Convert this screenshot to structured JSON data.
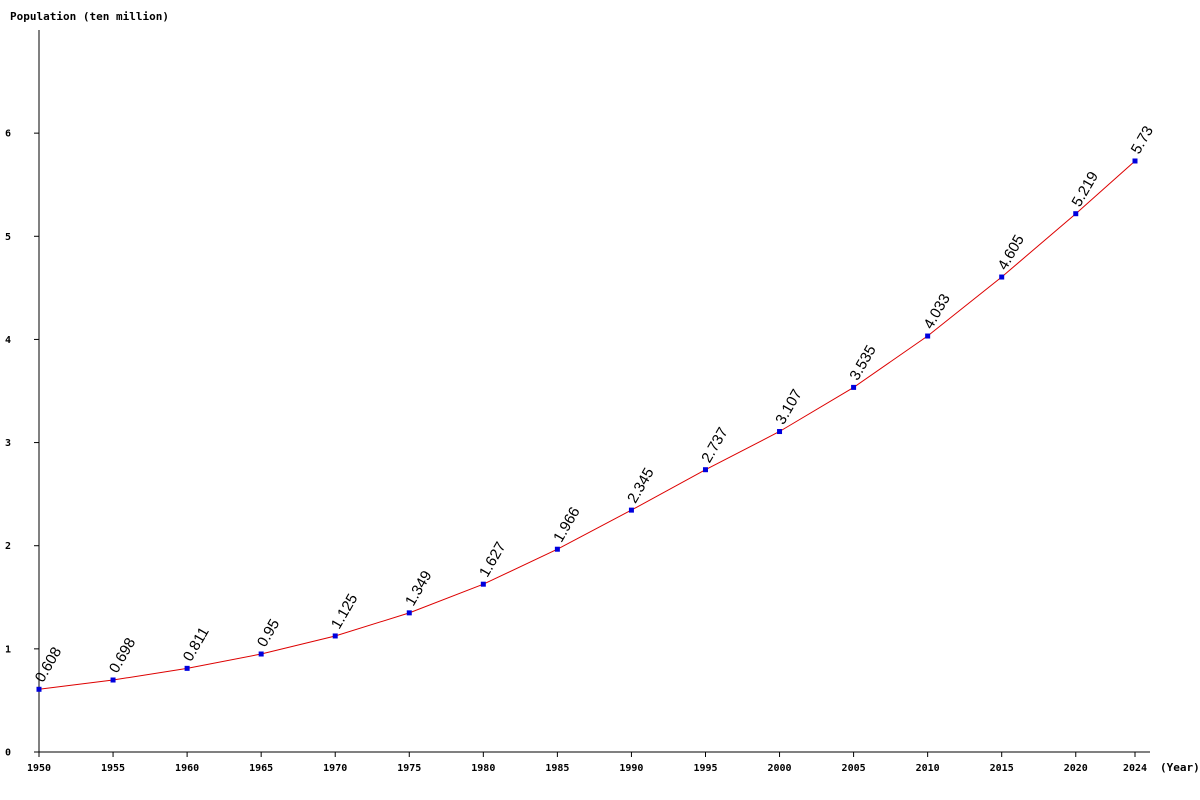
{
  "chart_data": {
    "type": "line",
    "ylabel": "Population (ten million)",
    "xlabel": "(Year)",
    "x": [
      1950,
      1955,
      1960,
      1965,
      1970,
      1975,
      1980,
      1985,
      1990,
      1995,
      2000,
      2005,
      2010,
      2015,
      2020,
      2024
    ],
    "x_tick_labels": [
      "1950",
      "1955",
      "1960",
      "1965",
      "1970",
      "1975",
      "1980",
      "1985",
      "1990",
      "1995",
      "2000",
      "2005",
      "2010",
      "2015",
      "2020",
      "2024"
    ],
    "values": [
      0.608,
      0.698,
      0.811,
      0.95,
      1.125,
      1.349,
      1.627,
      1.966,
      2.345,
      2.737,
      3.107,
      3.535,
      4.033,
      4.605,
      5.219,
      5.73
    ],
    "data_labels": [
      "0.608",
      "0.698",
      "0.811",
      "0.95",
      "1.125",
      "1.349",
      "1.627",
      "1.966",
      "2.345",
      "2.737",
      "3.107",
      "3.535",
      "4.033",
      "4.605",
      "5.219",
      "5.73"
    ],
    "y_ticks": [
      0,
      1,
      2,
      3,
      4,
      5,
      6
    ],
    "y_tick_labels": [
      "0",
      "1",
      "2",
      "3",
      "4",
      "5",
      "6"
    ],
    "ylim": [
      0,
      7
    ],
    "xlim": [
      1950,
      2024
    ],
    "grid": false,
    "line_color": "#dd0000",
    "marker_color": "#0000dd"
  }
}
